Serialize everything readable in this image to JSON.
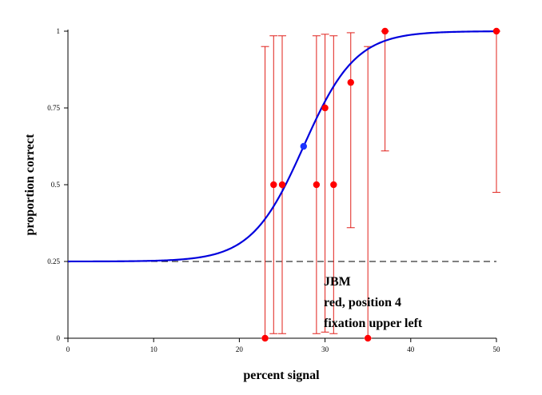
{
  "chart_data": {
    "type": "scatter",
    "title": "",
    "xlabel": "percent signal",
    "ylabel": "proportion correct",
    "xlim": [
      0,
      50
    ],
    "ylim": [
      0,
      1
    ],
    "x_ticks": [
      0,
      10,
      20,
      30,
      40,
      50
    ],
    "x_tick_labels": [
      "0",
      "10",
      "20",
      "30",
      "40",
      "50"
    ],
    "y_ticks": [
      0,
      0.25,
      0.5,
      0.75,
      1
    ],
    "y_tick_labels": [
      "0",
      "0.25",
      "0.5",
      "0.75",
      "1"
    ],
    "grid": false,
    "chance_level": 0.25,
    "colors": {
      "data": "#ff0000",
      "errorbar": "#e0201a",
      "fit": "#0000dd",
      "threshold_marker": "#1a33ff",
      "chance_line": "#000000"
    },
    "points": [
      {
        "x": 23,
        "y": 0.0,
        "err_low": 0.0,
        "err_high": 0.95
      },
      {
        "x": 24,
        "y": 0.5,
        "err_low": 0.015,
        "err_high": 0.985
      },
      {
        "x": 25,
        "y": 0.5,
        "err_low": 0.015,
        "err_high": 0.985
      },
      {
        "x": 29,
        "y": 0.5,
        "err_low": 0.015,
        "err_high": 0.985
      },
      {
        "x": 30,
        "y": 0.75,
        "err_low": 0.02,
        "err_high": 0.99
      },
      {
        "x": 31,
        "y": 0.5,
        "err_low": 0.015,
        "err_high": 0.985
      },
      {
        "x": 33,
        "y": 0.833,
        "err_low": 0.36,
        "err_high": 0.995
      },
      {
        "x": 35,
        "y": 0.0,
        "err_low": 0.0,
        "err_high": 0.95
      },
      {
        "x": 37,
        "y": 1.0,
        "err_low": 0.61,
        "err_high": 1.0
      },
      {
        "x": 50,
        "y": 1.0,
        "err_low": 0.475,
        "err_high": 1.0
      }
    ],
    "fit": {
      "type": "logistic",
      "gamma": 0.25,
      "lambda": 0.0,
      "alpha": 27.5,
      "beta": 0.33
    },
    "threshold_point": {
      "x": 27.5,
      "y": 0.625
    },
    "annotations": [
      "JBM",
      "red, position 4",
      "fixation upper left"
    ]
  }
}
